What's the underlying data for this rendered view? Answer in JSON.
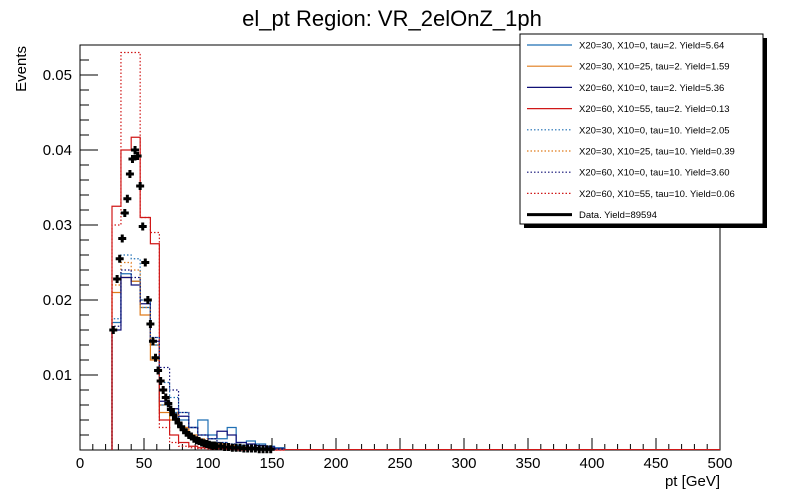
{
  "chart_data": {
    "type": "histogram",
    "title": "el_pt Region: VR_2elOnZ_1ph",
    "xlabel": "pt [GeV]",
    "ylabel": "Events",
    "xlim": [
      0,
      500
    ],
    "ylim": [
      0,
      0.054
    ],
    "xticks": [
      "0",
      "50",
      "100",
      "150",
      "200",
      "250",
      "300",
      "350",
      "400",
      "450",
      "500"
    ],
    "yticks": [
      "0.01",
      "0.02",
      "0.03",
      "0.04",
      "0.05"
    ],
    "legend_position": "top-right",
    "bin_edges": [
      25,
      32,
      40,
      47,
      55,
      62,
      70,
      77,
      85,
      92,
      100,
      107,
      115,
      122,
      130,
      137,
      145,
      152,
      160
    ],
    "series": [
      {
        "name": "X20=30, X10=0, tau=2. Yield=5.64",
        "color": "#1f6fb4",
        "style": "solid",
        "values": [
          0.017,
          0.0235,
          0.0225,
          0.019,
          0.014,
          0.006,
          0.005,
          0.004,
          0.003,
          0.004,
          0.002,
          0.0015,
          0.003,
          0.001,
          0.0012,
          0.0008,
          0.0005,
          0.0003
        ]
      },
      {
        "name": "X20=30, X10=25, tau=2. Yield=1.59",
        "color": "#e07b1a",
        "style": "solid",
        "values": [
          0.021,
          0.023,
          0.0225,
          0.018,
          0.012,
          0.005,
          0.004,
          0.003,
          0.002,
          0.001,
          0.001,
          0.0008,
          0.0006,
          0.0005,
          0.0003,
          0.0002,
          0.0002,
          0.0001
        ]
      },
      {
        "name": "X20=60, X10=0, tau=2. Yield=5.36",
        "color": "#111177",
        "style": "solid",
        "values": [
          0.016,
          0.023,
          0.022,
          0.0195,
          0.0145,
          0.0065,
          0.0055,
          0.0045,
          0.003,
          0.002,
          0.0015,
          0.0025,
          0.002,
          0.001,
          0.0008,
          0.0006,
          0.0004,
          0.0002
        ]
      },
      {
        "name": "X20=60, X10=55, tau=2. Yield=0.13",
        "color": "#d01818",
        "style": "solid",
        "values": [
          0.0325,
          0.04,
          0.0417,
          0.031,
          0.0275,
          0.004,
          0.002,
          0.001,
          0.0005,
          0.0003,
          0.0002,
          0.0002,
          0.0001,
          0.0001,
          0.0001,
          0.0001,
          0.0,
          0.0
        ]
      },
      {
        "name": "X20=30, X10=0, tau=10. Yield=2.05",
        "color": "#1f6fb4",
        "style": "dotted",
        "values": [
          0.0175,
          0.026,
          0.0255,
          0.02,
          0.015,
          0.009,
          0.007,
          0.005,
          0.003,
          0.002,
          0.0015,
          0.001,
          0.0008,
          0.0006,
          0.0004,
          0.0003,
          0.0002,
          0.0001
        ]
      },
      {
        "name": "X20=30, X10=25, tau=10. Yield=0.39",
        "color": "#e07b1a",
        "style": "dotted",
        "values": [
          0.022,
          0.025,
          0.024,
          0.019,
          0.014,
          0.006,
          0.005,
          0.003,
          0.002,
          0.0015,
          0.001,
          0.0008,
          0.0006,
          0.0004,
          0.0003,
          0.0002,
          0.0001,
          0.0001
        ]
      },
      {
        "name": "X20=60, X10=0, tau=10. Yield=3.60",
        "color": "#111177",
        "style": "dotted",
        "values": [
          0.0165,
          0.024,
          0.023,
          0.02,
          0.015,
          0.011,
          0.008,
          0.005,
          0.003,
          0.002,
          0.0015,
          0.001,
          0.0008,
          0.0006,
          0.0004,
          0.0003,
          0.0002,
          0.0001
        ]
      },
      {
        "name": "X20=60, X10=55, tau=10. Yield=0.06",
        "color": "#d01818",
        "style": "dotted",
        "values": [
          0.03,
          0.053,
          0.053,
          0.031,
          0.029,
          0.003,
          0.001,
          0.0005,
          0.0003,
          0.0002,
          0.0001,
          0.0001,
          0.0001,
          0.0,
          0.0,
          0.0,
          0.0,
          0.0
        ]
      }
    ],
    "data_series": {
      "name": "Data. Yield=89594",
      "color": "#000000",
      "x": [
        26,
        29,
        31,
        33,
        35,
        37,
        39,
        41,
        43,
        45,
        47,
        49,
        51,
        53,
        55,
        57,
        59,
        61,
        63,
        65,
        67,
        69,
        71,
        73,
        75,
        77,
        79,
        81,
        83,
        85,
        87,
        89,
        91,
        93,
        95,
        97,
        99,
        101,
        103,
        105,
        107,
        110,
        113,
        116,
        119,
        122,
        125,
        128,
        131,
        134,
        137,
        140,
        143,
        146,
        149
      ],
      "y": [
        0.016,
        0.0228,
        0.0255,
        0.0282,
        0.0316,
        0.0335,
        0.0368,
        0.0388,
        0.04,
        0.0392,
        0.0352,
        0.0298,
        0.025,
        0.02,
        0.0168,
        0.0145,
        0.0123,
        0.0106,
        0.0092,
        0.008,
        0.007,
        0.0062,
        0.0054,
        0.0047,
        0.0041,
        0.0036,
        0.0031,
        0.0027,
        0.0023,
        0.002,
        0.0018,
        0.0015,
        0.0013,
        0.0012,
        0.001,
        0.0009,
        0.0008,
        0.0007,
        0.0006,
        0.0006,
        0.0005,
        0.0005,
        0.0004,
        0.0004,
        0.0003,
        0.0003,
        0.0003,
        0.0002,
        0.0002,
        0.0002,
        0.0002,
        0.0001,
        0.0001,
        0.0001,
        0.0001
      ]
    }
  }
}
